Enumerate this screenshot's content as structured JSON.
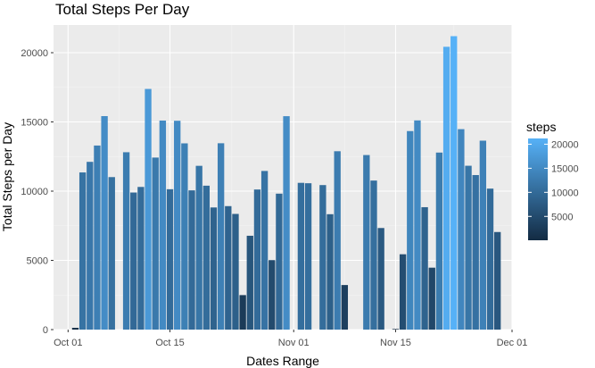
{
  "chart_data": {
    "type": "bar",
    "title": "Total Steps Per Day",
    "xlabel": "Dates Range",
    "ylabel": "Total Steps per Day",
    "x_ticks": [
      {
        "date": "2012-10-01",
        "label": "Oct 01"
      },
      {
        "date": "2012-10-15",
        "label": "Oct 15"
      },
      {
        "date": "2012-11-01",
        "label": "Nov 01"
      },
      {
        "date": "2012-11-15",
        "label": "Nov 15"
      },
      {
        "date": "2012-12-01",
        "label": "Dec 01"
      }
    ],
    "xlim": [
      "2012-09-29",
      "2012-12-01"
    ],
    "y_ticks": [
      0,
      5000,
      10000,
      15000,
      20000
    ],
    "ylim": [
      0,
      22000
    ],
    "grid": true,
    "legend": {
      "title": "steps",
      "position": "right",
      "breaks": [
        5000,
        10000,
        15000,
        20000
      ],
      "range": [
        41,
        21194
      ],
      "color_low": "#132b43",
      "color_high": "#56b1f7"
    },
    "dates": [
      "2012-10-01",
      "2012-10-02",
      "2012-10-03",
      "2012-10-04",
      "2012-10-05",
      "2012-10-06",
      "2012-10-07",
      "2012-10-08",
      "2012-10-09",
      "2012-10-10",
      "2012-10-11",
      "2012-10-12",
      "2012-10-13",
      "2012-10-14",
      "2012-10-15",
      "2012-10-16",
      "2012-10-17",
      "2012-10-18",
      "2012-10-19",
      "2012-10-20",
      "2012-10-21",
      "2012-10-22",
      "2012-10-23",
      "2012-10-24",
      "2012-10-25",
      "2012-10-26",
      "2012-10-27",
      "2012-10-28",
      "2012-10-29",
      "2012-10-30",
      "2012-10-31",
      "2012-11-01",
      "2012-11-02",
      "2012-11-03",
      "2012-11-04",
      "2012-11-05",
      "2012-11-06",
      "2012-11-07",
      "2012-11-08",
      "2012-11-09",
      "2012-11-10",
      "2012-11-11",
      "2012-11-12",
      "2012-11-13",
      "2012-11-14",
      "2012-11-15",
      "2012-11-16",
      "2012-11-17",
      "2012-11-18",
      "2012-11-19",
      "2012-11-20",
      "2012-11-21",
      "2012-11-22",
      "2012-11-23",
      "2012-11-24",
      "2012-11-25",
      "2012-11-26",
      "2012-11-27",
      "2012-11-28",
      "2012-11-29",
      "2012-11-30"
    ],
    "values": [
      0,
      126,
      11352,
      12116,
      13294,
      15420,
      11015,
      0,
      12811,
      9900,
      10304,
      17382,
      12426,
      15098,
      10139,
      15084,
      13452,
      10056,
      11829,
      10395,
      8821,
      13460,
      8918,
      8355,
      2492,
      6778,
      10119,
      11458,
      5018,
      9819,
      15414,
      0,
      10600,
      10571,
      0,
      10439,
      8334,
      12883,
      3219,
      0,
      0,
      12608,
      10765,
      7336,
      0,
      41,
      5441,
      14339,
      15110,
      8841,
      4472,
      12787,
      20427,
      21194,
      14478,
      11834,
      11162,
      13646,
      10183,
      7047,
      0
    ]
  }
}
